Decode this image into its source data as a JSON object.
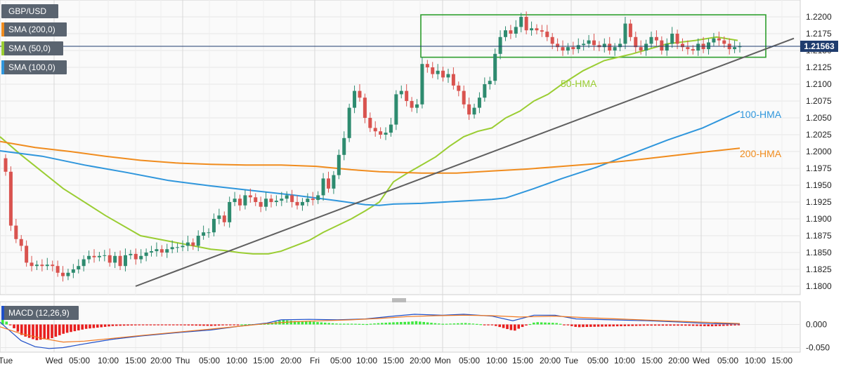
{
  "chart_data": {
    "type": "candlestick",
    "symbol": "GBP/USD",
    "price_axis": {
      "ticks": [
        "1.2200",
        "1.2175",
        "1.2150",
        "1.2125",
        "1.2100",
        "1.2075",
        "1.2050",
        "1.2025",
        "1.2000",
        "1.1975",
        "1.1950",
        "1.1925",
        "1.1900",
        "1.1875",
        "1.1850",
        "1.1825",
        "1.1800"
      ],
      "range": [
        1.1785,
        1.2215
      ]
    },
    "macd_axis": {
      "ticks": [
        "0.000",
        "-0.050"
      ],
      "range": [
        -0.058,
        0.018
      ]
    },
    "time_axis": {
      "labels": [
        "Tue",
        "Wed",
        "05:00",
        "10:00",
        "15:00",
        "20:00",
        "Thu",
        "05:00",
        "10:00",
        "15:00",
        "20:00",
        "Fri",
        "05:00",
        "10:00",
        "15:00",
        "20:00",
        "Mon",
        "05:00",
        "10:00",
        "15:00",
        "20:00",
        "Tue",
        "05:00",
        "10:00",
        "15:00",
        "20:00",
        "Wed",
        "05:00",
        "10:00",
        "15:00"
      ],
      "day_break_labels": [
        "Wed",
        "Thu",
        "Fri",
        "Mon",
        "Tue",
        "Wed"
      ]
    },
    "current_price": "1.21563",
    "legend": [
      {
        "name": "SMA (200,0)",
        "color": "#f08c1e"
      },
      {
        "name": "SMA (50,0)",
        "color": "#9acd32"
      },
      {
        "name": "SMA (100,0)",
        "color": "#2f96dc"
      }
    ],
    "macd_label": "MACD (12,26,9)",
    "annotations": {
      "hma50": "50-HMA",
      "hma100": "100-HMA",
      "hma200": "200-HMA"
    },
    "candles_close": [
      1.197,
      1.189,
      1.187,
      1.186,
      1.1835,
      1.183,
      1.1832,
      1.183,
      1.1832,
      1.183,
      1.182,
      1.1815,
      1.182,
      1.1825,
      1.183,
      1.184,
      1.1845,
      1.1843,
      1.1845,
      1.1846,
      1.1835,
      1.1845,
      1.183,
      1.1846,
      1.1848,
      1.184,
      1.1845,
      1.185,
      1.1852,
      1.1855,
      1.185,
      1.1855,
      1.1858,
      1.1858,
      1.186,
      1.1865,
      1.186,
      1.1875,
      1.188,
      1.188,
      1.19,
      1.1905,
      1.1895,
      1.1925,
      1.193,
      1.192,
      1.1935,
      1.1932,
      1.1925,
      1.1918,
      1.193,
      1.1925,
      1.1927,
      1.193,
      1.1935,
      1.1925,
      1.192,
      1.1925,
      1.193,
      1.1928,
      1.1935,
      1.196,
      1.1945,
      1.1965,
      1.1995,
      1.202,
      1.2065,
      1.209,
      1.208,
      1.205,
      1.2035,
      1.203,
      1.2025,
      1.2028,
      1.204,
      1.2085,
      1.209,
      1.2075,
      1.2065,
      1.207,
      1.213,
      1.2125,
      1.2115,
      1.212,
      1.211,
      1.2115,
      1.2098,
      1.209,
      1.207,
      1.2055,
      1.2065,
      1.208,
      1.21,
      1.2105,
      1.2145,
      1.217,
      1.218,
      1.2175,
      1.2185,
      1.22,
      1.218,
      1.2183,
      1.218,
      1.2178,
      1.217,
      1.216,
      1.2155,
      1.215,
      1.2155,
      1.2152,
      1.2158,
      1.216,
      1.2165,
      1.2158,
      1.2155,
      1.216,
      1.215,
      1.2155,
      1.216,
      1.219,
      1.217,
      1.2155,
      1.215,
      1.216,
      1.217,
      1.2165,
      1.215,
      1.216,
      1.2175,
      1.216,
      1.2155,
      1.2152,
      1.215,
      1.216,
      1.2152,
      1.2162,
      1.2168,
      1.2165,
      1.216,
      1.2152,
      1.2155,
      1.21563
    ],
    "series": [
      {
        "name": "50-HMA",
        "color": "#9acd32",
        "points": [
          [
            0,
            1.2022
          ],
          [
            30,
            1.1995
          ],
          [
            90,
            1.1945
          ],
          [
            150,
            1.1905
          ],
          [
            200,
            1.1875
          ],
          [
            250,
            1.1865
          ],
          [
            300,
            1.1855
          ],
          [
            320,
            1.1853
          ],
          [
            340,
            1.185
          ],
          [
            360,
            1.1848
          ],
          [
            382,
            1.1848
          ],
          [
            400,
            1.1852
          ],
          [
            420,
            1.186
          ],
          [
            440,
            1.1868
          ],
          [
            460,
            1.188
          ],
          [
            480,
            1.189
          ],
          [
            500,
            1.19
          ],
          [
            520,
            1.1912
          ],
          [
            540,
            1.1925
          ],
          [
            560,
            1.1955
          ],
          [
            580,
            1.1968
          ],
          [
            600,
            1.198
          ],
          [
            620,
            1.1992
          ],
          [
            640,
            1.2008
          ],
          [
            660,
            1.2022
          ],
          [
            680,
            1.203
          ],
          [
            700,
            1.2035
          ],
          [
            720,
            1.205
          ],
          [
            740,
            1.206
          ],
          [
            760,
            1.2075
          ],
          [
            780,
            1.2085
          ],
          [
            800,
            1.21
          ],
          [
            830,
            1.212
          ],
          [
            860,
            1.2135
          ],
          [
            900,
            1.2145
          ],
          [
            950,
            1.216
          ],
          [
            990,
            1.2165
          ],
          [
            1020,
            1.217
          ],
          [
            1050,
            1.2165
          ]
        ]
      },
      {
        "name": "100-HMA",
        "color": "#2f96dc",
        "points": [
          [
            0,
            1.2001
          ],
          [
            60,
            1.1993
          ],
          [
            120,
            1.198
          ],
          [
            180,
            1.1969
          ],
          [
            240,
            1.1957
          ],
          [
            300,
            1.1949
          ],
          [
            360,
            1.1942
          ],
          [
            420,
            1.1935
          ],
          [
            480,
            1.1927
          ],
          [
            520,
            1.1921
          ],
          [
            540,
            1.192
          ],
          [
            560,
            1.1922
          ],
          [
            600,
            1.1923
          ],
          [
            650,
            1.1926
          ],
          [
            700,
            1.1929
          ],
          [
            720,
            1.1931
          ],
          [
            760,
            1.1945
          ],
          [
            800,
            1.196
          ],
          [
            850,
            1.1977
          ],
          [
            900,
            1.1997
          ],
          [
            950,
            1.2017
          ],
          [
            1000,
            1.2035
          ],
          [
            1053,
            1.206
          ]
        ]
      },
      {
        "name": "200-HMA",
        "color": "#f08c1e",
        "points": [
          [
            0,
            1.2015
          ],
          [
            50,
            1.2006
          ],
          [
            100,
            1.2
          ],
          [
            150,
            1.1993
          ],
          [
            200,
            1.1987
          ],
          [
            250,
            1.1983
          ],
          [
            300,
            1.1981
          ],
          [
            350,
            1.198
          ],
          [
            400,
            1.198
          ],
          [
            450,
            1.1978
          ],
          [
            500,
            1.1973
          ],
          [
            540,
            1.197
          ],
          [
            600,
            1.1968
          ],
          [
            650,
            1.1968
          ],
          [
            700,
            1.1971
          ],
          [
            750,
            1.1974
          ],
          [
            800,
            1.1978
          ],
          [
            850,
            1.1982
          ],
          [
            900,
            1.1987
          ],
          [
            950,
            1.1993
          ],
          [
            1000,
            1.1999
          ],
          [
            1053,
            1.2005
          ]
        ]
      }
    ],
    "trendline": {
      "from": [
        "Wed 15:00",
        1.18
      ],
      "to": [
        "Wed 10:00 (+1wk)",
        1.2168
      ]
    },
    "range_box": {
      "top": 1.2203,
      "bottom": 1.214
    },
    "macd": {
      "zero_line": 0.0
    }
  }
}
